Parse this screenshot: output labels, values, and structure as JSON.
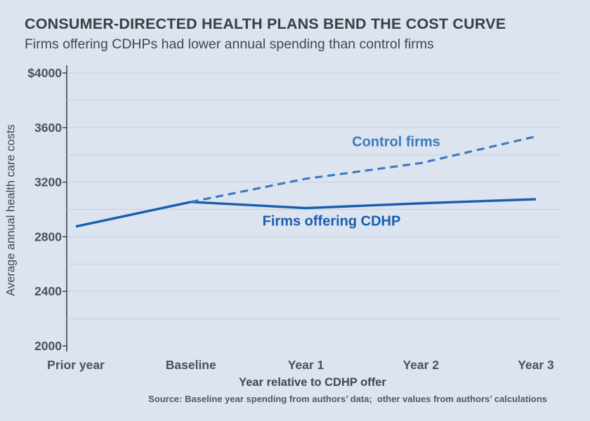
{
  "header": {
    "title": "CONSUMER-DIRECTED HEALTH PLANS BEND THE COST CURVE",
    "subtitle": "Firms offering CDHPs had lower annual spending than control firms"
  },
  "colors": {
    "background": "#dce4f0",
    "title_text": "#3b3e43",
    "body_text": "#43474c",
    "tick_text": "#4d5157",
    "axis_line": "#42464c",
    "gridline": "#c9d2e1",
    "dark_blue": "#1a5dad",
    "light_blue": "#3b7ac1"
  },
  "chart_data": {
    "type": "line",
    "categories": [
      "Prior year",
      "Baseline",
      "Year 1",
      "Year 2",
      "Year 3"
    ],
    "series": [
      {
        "name": "Firms offering CDHP",
        "values": [
          2875,
          3055,
          3010,
          3045,
          3075
        ],
        "style": "solid",
        "color": "#1a5dad"
      },
      {
        "name": "Control firms",
        "values": [
          null,
          3055,
          3225,
          3340,
          3535
        ],
        "style": "dashed",
        "color": "#3b7ac1"
      }
    ],
    "xlabel": "Year relative to CDHP offer",
    "ylabel": "Average annual health care costs",
    "ylim": [
      2000,
      4000
    ],
    "grid": true,
    "grid_step": 200,
    "yticks": [
      {
        "value": 4000,
        "label": "$4000"
      },
      {
        "value": 3600,
        "label": "3600"
      },
      {
        "value": 3200,
        "label": "3200"
      },
      {
        "value": 2800,
        "label": "2800"
      },
      {
        "value": 2400,
        "label": "2400"
      },
      {
        "value": 2000,
        "label": "2000"
      }
    ],
    "legend_position": "inline-annotations"
  },
  "source_note": "Source: Baseline year spending from authors’ data;  other values from authors’ calculations"
}
